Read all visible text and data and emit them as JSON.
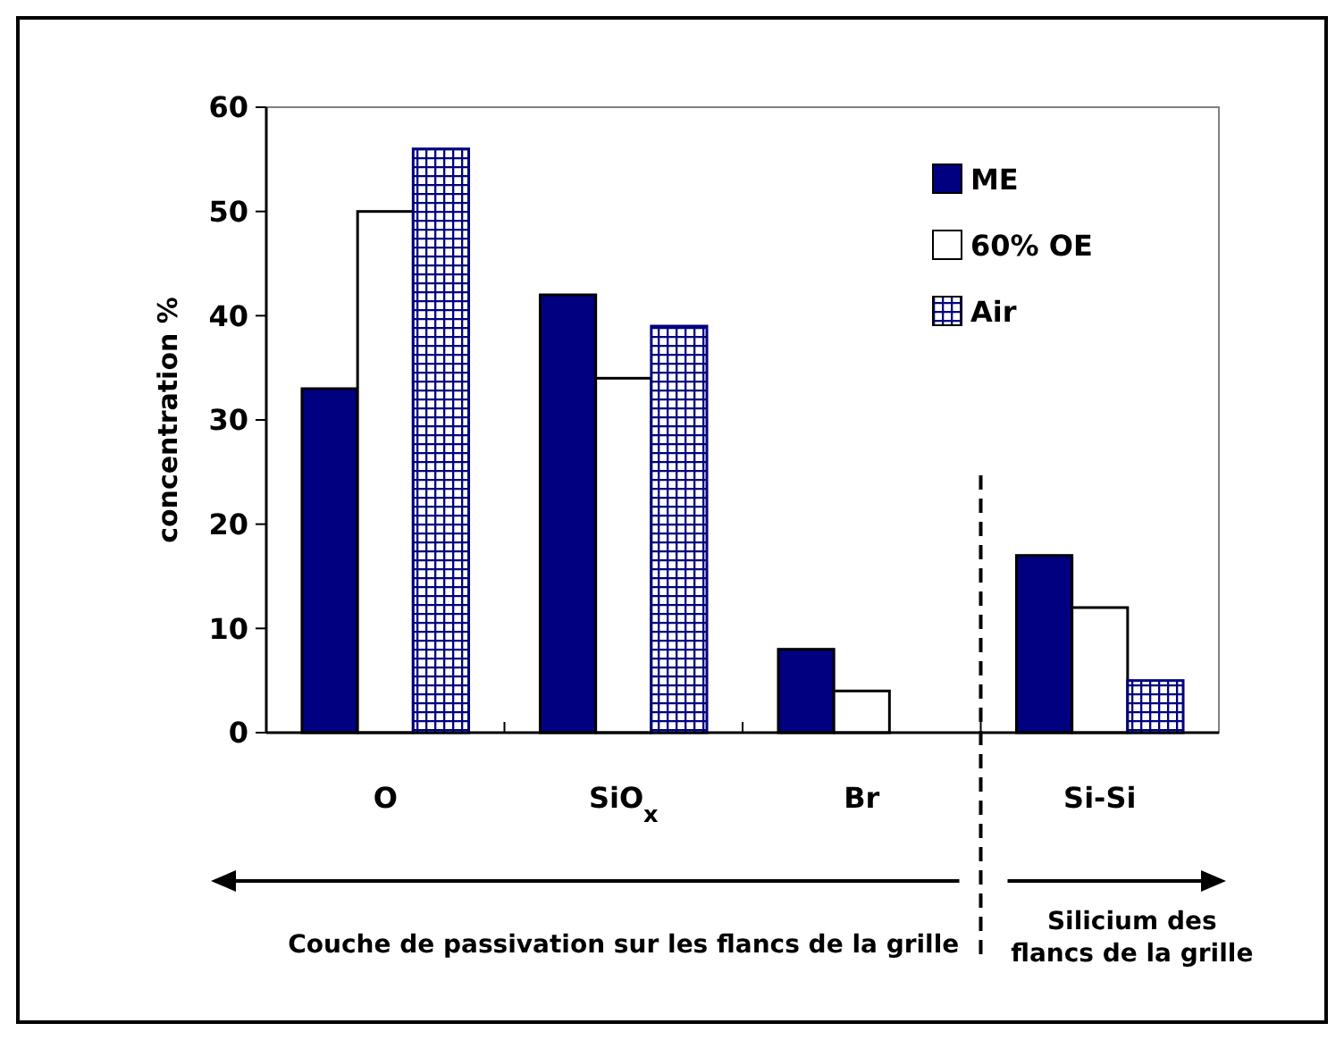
{
  "chart_data": {
    "type": "bar",
    "ylabel": "concentration %",
    "categories": [
      "O",
      "SiO$_{x}$",
      "Br",
      "Si-Si"
    ],
    "series": [
      {
        "name": "ME",
        "color": "#000080",
        "values": [
          33,
          42,
          8,
          17
        ]
      },
      {
        "name": "60% OE",
        "color": "#ffffff",
        "values": [
          50,
          34,
          4,
          12
        ]
      },
      {
        "name": "Air",
        "color": "#000080",
        "values": [
          56,
          39,
          null,
          5
        ]
      }
    ],
    "ylim": [
      0,
      60
    ],
    "yticks": [
      0,
      10,
      20,
      30,
      40,
      50,
      60
    ],
    "grid": false,
    "legend": "top right",
    "annotations": [
      "Couche de passivation sur les flancs de la grille",
      "Silicium des flancs de la grille"
    ]
  }
}
